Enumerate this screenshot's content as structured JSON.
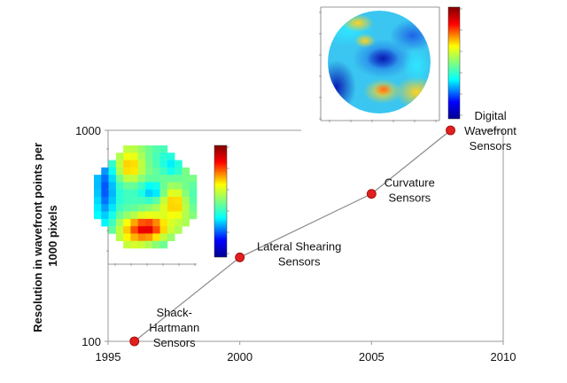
{
  "chart_data": {
    "type": "scatter",
    "title": "",
    "xlabel": "",
    "ylabel": "Resolution in wavefront points per 1000 pixels",
    "xlim": [
      1995,
      2010
    ],
    "ylim": [
      100,
      1000
    ],
    "yscale": "log",
    "x_ticks": [
      "1995",
      "2000",
      "2005",
      "2010"
    ],
    "y_ticks": [
      "100",
      "1000"
    ],
    "grid": false,
    "connected": true,
    "marker_color": "#e02020",
    "line_color": "#8a8a8a",
    "points": [
      {
        "x": 1996,
        "y": 100,
        "label_lines": [
          "Shack-",
          "Hartmann",
          "Sensors"
        ]
      },
      {
        "x": 2000,
        "y": 250,
        "label_lines": [
          "Lateral Shearing",
          "Sensors"
        ]
      },
      {
        "x": 2005,
        "y": 500,
        "label_lines": [
          "Curvature",
          "Sensors"
        ]
      },
      {
        "x": 2008,
        "y": 1000,
        "label_lines": [
          "Digital",
          "Wavefront",
          "Sensors"
        ]
      }
    ]
  },
  "insets": [
    {
      "name": "low-resolution-wavefront-map",
      "style": "pixelated",
      "colormap": "jet"
    },
    {
      "name": "high-resolution-wavefront-map",
      "style": "smooth",
      "colormap": "jet"
    }
  ]
}
